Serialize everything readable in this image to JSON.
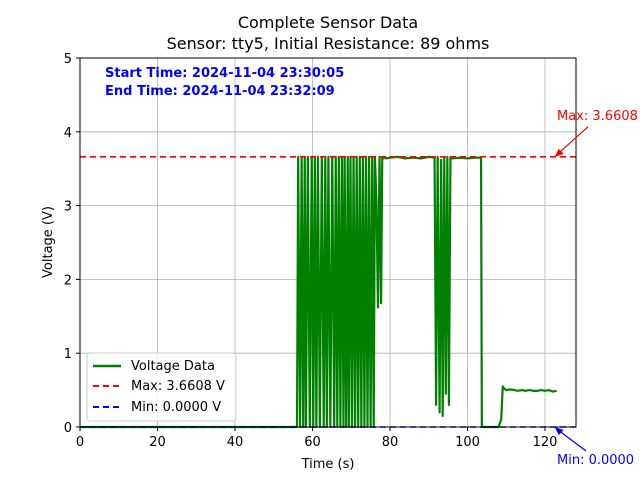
{
  "chart_data": {
    "type": "line",
    "title": "Complete Sensor Data",
    "subtitle": "Sensor: tty5, Initial Resistance: 89 ohms",
    "xlabel": "Time (s)",
    "ylabel": "Voltage (V)",
    "xlim": [
      0,
      128
    ],
    "ylim": [
      0,
      5
    ],
    "xticks": [
      0,
      20,
      40,
      60,
      80,
      100,
      120
    ],
    "yticks": [
      0,
      1,
      2,
      3,
      4,
      5
    ],
    "grid": true,
    "legend_position": "lower-left",
    "info_lines": [
      "Start Time: 2024-11-04 23:30:05",
      "End Time: 2024-11-04 23:32:09"
    ],
    "series": [
      {
        "name": "Voltage Data",
        "color": "#008000",
        "x": [
          0,
          56,
          56.3,
          56.8,
          57.2,
          57.6,
          58.0,
          58.3,
          58.8,
          59.3,
          59.8,
          60.2,
          60.6,
          61.0,
          61.4,
          61.9,
          62.4,
          62.9,
          63.3,
          63.7,
          64.1,
          64.6,
          65.1,
          65.6,
          66.0,
          66.4,
          66.8,
          67.2,
          67.6,
          68.0,
          68.3,
          68.7,
          69.1,
          69.4,
          69.8,
          70.2,
          70.6,
          71.0,
          71.4,
          71.8,
          72.2,
          72.6,
          73.0,
          73.4,
          73.8,
          74.2,
          74.6,
          75.0,
          75.4,
          75.8,
          76.1,
          76.5,
          76.9,
          77.3,
          77.7,
          78.0,
          78.4,
          78.7,
          79.0,
          80,
          82,
          84,
          86,
          88,
          90,
          91.5,
          91.9,
          92.3,
          92.8,
          93.2,
          93.6,
          94.0,
          94.4,
          94.8,
          95.2,
          95.6,
          96,
          98,
          100,
          102,
          103.5,
          103.7,
          104.0,
          104.3,
          104.6,
          105,
          106,
          108,
          108.7,
          109.1,
          109.5,
          110,
          111,
          112,
          113,
          114,
          115,
          116,
          117,
          118,
          119,
          120,
          121,
          122,
          123
        ],
        "y": [
          0,
          0,
          3.66,
          0,
          3.66,
          0,
          3.66,
          0,
          3.66,
          0,
          3.66,
          0,
          3.66,
          0,
          3.66,
          0,
          3.66,
          0,
          3.66,
          0,
          3.66,
          0,
          3.66,
          0,
          3.66,
          0,
          3.66,
          0,
          3.66,
          0,
          3.66,
          0,
          3.66,
          0,
          3.66,
          0,
          3.66,
          0,
          3.66,
          0,
          3.66,
          0,
          3.66,
          0,
          3.66,
          0,
          3.66,
          0,
          3.66,
          0,
          3.66,
          3.05,
          1.62,
          3.66,
          1.68,
          3.66,
          3.64,
          3.66,
          3.64,
          3.65,
          3.66,
          3.64,
          3.65,
          3.64,
          3.66,
          3.65,
          0.3,
          3.66,
          0.2,
          3.62,
          0.15,
          3.66,
          0.45,
          3.66,
          0.3,
          3.65,
          3.64,
          3.65,
          3.64,
          3.65,
          3.65,
          0,
          0,
          0,
          0,
          0,
          0,
          0,
          0.1,
          0.55,
          0.52,
          0.5,
          0.51,
          0.5,
          0.49,
          0.5,
          0.49,
          0.5,
          0.49,
          0.49,
          0.5,
          0.49,
          0.5,
          0.48,
          0.49
        ]
      }
    ],
    "reference_lines": [
      {
        "name": "Max: 3.6608 V",
        "value": 3.6608,
        "color": "#ff0000",
        "annotation": "Max: 3.6608"
      },
      {
        "name": "Min: 0.0000 V",
        "value": 0.0,
        "color": "#0000ff",
        "annotation": "Min: 0.0000"
      }
    ]
  }
}
